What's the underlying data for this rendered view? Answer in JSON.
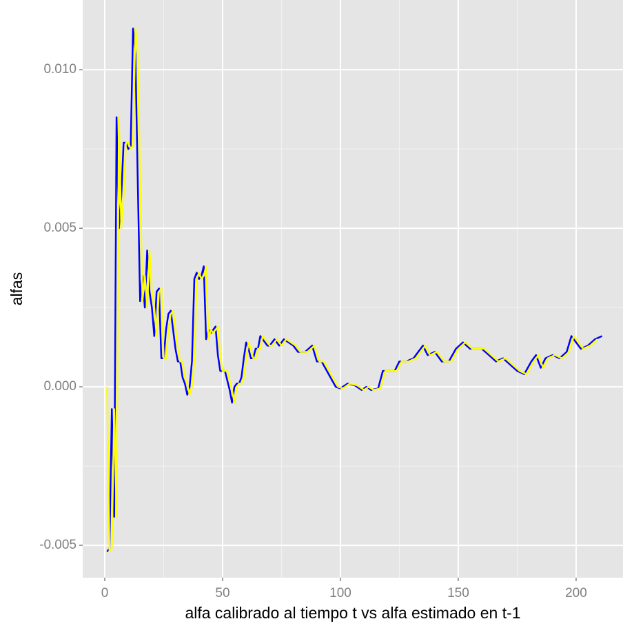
{
  "chart_data": {
    "type": "line",
    "xlabel": "alfa calibrado al tiempo t vs alfa estimado en t-1",
    "ylabel": "alfas",
    "xlim": [
      -9.36,
      219.9
    ],
    "ylim": [
      -0.00602,
      0.0122
    ],
    "xticks": [
      0,
      50,
      100,
      150,
      200
    ],
    "yticks": [
      -0.005,
      {
        "value": 0,
        "label": "0.000"
      },
      0.005,
      {
        "value": 0.01,
        "label": "0.010"
      }
    ],
    "xminorticks": [
      25,
      75,
      125,
      175
    ],
    "yminorticks": [
      -0.0025,
      0.0025,
      0.0075
    ],
    "grid": true,
    "series": [
      {
        "color": "#0000ff",
        "x": [
          1,
          2,
          3,
          4,
          5,
          6,
          7,
          8,
          9,
          10,
          11,
          12,
          13,
          14,
          15,
          16,
          17,
          18,
          19,
          20,
          21,
          22,
          23,
          24,
          25,
          26,
          27,
          28,
          29,
          30,
          31,
          32,
          33,
          34,
          35,
          36,
          37,
          38,
          39,
          40,
          41,
          42,
          43,
          44,
          45,
          46,
          47,
          48,
          49,
          50,
          51,
          52,
          53,
          54,
          55,
          56,
          57,
          58,
          59,
          60,
          61,
          62,
          63,
          64,
          65,
          66,
          67,
          68,
          69,
          70,
          72,
          74,
          76,
          78,
          80,
          82,
          85,
          88,
          90,
          92,
          95,
          98,
          100,
          103,
          106,
          109,
          111,
          113,
          116,
          118,
          120,
          123,
          125,
          128,
          131,
          135,
          137,
          140,
          143,
          146,
          149,
          152,
          155,
          160,
          163,
          166,
          169,
          172,
          175,
          178,
          181,
          183,
          185,
          187,
          190,
          193,
          196,
          198,
          200,
          202,
          205,
          208,
          211
        ],
        "values": [
          -0.0052,
          -0.0051,
          -0.0007,
          -0.0041,
          0.0085,
          0.005,
          0.006,
          0.0077,
          0.0077,
          0.0075,
          0.0076,
          0.0113,
          0.0105,
          0.0065,
          0.0027,
          0.0035,
          0.0025,
          0.0043,
          0.003,
          0.0025,
          0.0016,
          0.003,
          0.0031,
          0.0009,
          0.0009,
          0.0018,
          0.0023,
          0.0024,
          0.0018,
          0.0012,
          0.0008,
          0.0008,
          0.0003,
          0.0001,
          -0.00025,
          0.0,
          0.0008,
          0.0034,
          0.0036,
          0.0034,
          0.0035,
          0.0038,
          0.0015,
          0.0018,
          0.0017,
          0.0018,
          0.0019,
          0.001,
          0.0005,
          0.0005,
          0.0005,
          0.0002,
          -0.0001,
          -0.0005,
          0.0,
          0.0001,
          0.0001,
          0.0003,
          0.0009,
          0.0014,
          0.0012,
          0.0009,
          0.0009,
          0.0012,
          0.0012,
          0.0016,
          0.0015,
          0.0014,
          0.0013,
          0.0013,
          0.0015,
          0.0013,
          0.0015,
          0.0014,
          0.0013,
          0.0011,
          0.0011,
          0.0013,
          0.0008,
          0.0008,
          0.0004,
          0.0,
          -5e-05,
          0.0001,
          5e-05,
          -0.0001,
          0.0,
          -0.0001,
          -5e-05,
          0.0005,
          0.0005,
          0.0005,
          0.0008,
          0.0008,
          0.0009,
          0.0013,
          0.001,
          0.0011,
          0.0008,
          0.0008,
          0.0012,
          0.0014,
          0.0012,
          0.0012,
          0.001,
          0.0008,
          0.0009,
          0.0007,
          0.0005,
          0.0004,
          0.0008,
          0.001,
          0.0006,
          0.0009,
          0.001,
          0.0009,
          0.0011,
          0.0016,
          0.0014,
          0.0012,
          0.0013,
          0.0015,
          0.0016
        ]
      },
      {
        "color": "#ffff00",
        "x": [
          1,
          2,
          3,
          4,
          5,
          6,
          7,
          8,
          9,
          10,
          11,
          12,
          13,
          14,
          15,
          16,
          17,
          18,
          19,
          20,
          21,
          22,
          23,
          24,
          25,
          26,
          27,
          28,
          29,
          30,
          31,
          32,
          33,
          34,
          35,
          36,
          37,
          38,
          39,
          40,
          41,
          42,
          43,
          44,
          45,
          46,
          47,
          48,
          49,
          50,
          51,
          52,
          53,
          54,
          55,
          56,
          57,
          58,
          59,
          60,
          61,
          62,
          63,
          64,
          65,
          66,
          67,
          68,
          69,
          70,
          71,
          73,
          75,
          77,
          79,
          81,
          83,
          86,
          89,
          91,
          93,
          96,
          99,
          101,
          104,
          107,
          110,
          112,
          114,
          117,
          119,
          121,
          124,
          126,
          129,
          132,
          136,
          138,
          141,
          144,
          147,
          150,
          153,
          156,
          161,
          164,
          167,
          170,
          173,
          176,
          179,
          182,
          184,
          186,
          188,
          191,
          194,
          197,
          199,
          201,
          203,
          206,
          209
        ],
        "values": [
          0,
          -0.0052,
          -0.0051,
          -0.0007,
          -0.0041,
          0.0085,
          0.005,
          0.006,
          0.0077,
          0.0077,
          0.0075,
          0.0076,
          0.0113,
          0.0105,
          0.0065,
          0.0027,
          0.0035,
          0.0025,
          0.0043,
          0.003,
          0.0025,
          0.0016,
          0.003,
          0.0031,
          0.0009,
          0.0009,
          0.0018,
          0.0023,
          0.0024,
          0.0018,
          0.0012,
          0.0008,
          0.0008,
          0.0003,
          0.0001,
          -0.00025,
          0.0,
          0.0008,
          0.0034,
          0.0036,
          0.0034,
          0.0035,
          0.0038,
          0.0015,
          0.0018,
          0.0017,
          0.0018,
          0.0019,
          0.001,
          0.0005,
          0.0005,
          0.0005,
          0.0002,
          -0.0001,
          -0.0005,
          0.0,
          0.0001,
          0.0001,
          0.0003,
          0.0009,
          0.0014,
          0.0012,
          0.0009,
          0.0009,
          0.0012,
          0.0012,
          0.0016,
          0.0015,
          0.0014,
          0.0013,
          0.0013,
          0.0015,
          0.0013,
          0.0015,
          0.0014,
          0.0013,
          0.0011,
          0.0011,
          0.0013,
          0.0008,
          0.0008,
          0.0004,
          0.0,
          -5e-05,
          0.0001,
          5e-05,
          -0.0001,
          0.0,
          -0.0001,
          -5e-05,
          0.0005,
          0.0005,
          0.0005,
          0.0008,
          0.0008,
          0.0009,
          0.0013,
          0.001,
          0.0011,
          0.0008,
          0.0008,
          0.0012,
          0.0014,
          0.0012,
          0.0012,
          0.001,
          0.0008,
          0.0009,
          0.0007,
          0.0005,
          0.0004,
          0.0008,
          0.001,
          0.0006,
          0.0009,
          0.001,
          0.0009,
          0.0011,
          0.0016,
          0.0014,
          0.0012,
          0.0013,
          0.0015
        ]
      }
    ]
  }
}
